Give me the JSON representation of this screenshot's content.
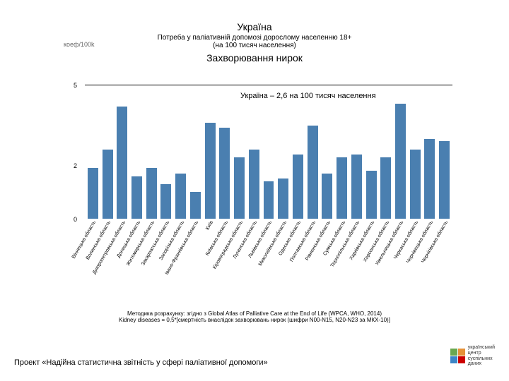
{
  "header": {
    "country": "Україна",
    "subtitle1": "Потреба у паліативній допомозі дорослому населенню 18+",
    "subtitle2": "(на 100 тисяч населення)",
    "disease": "Захворювання нирок"
  },
  "yaxis_label": "коеф/100k",
  "annotation": "Україна – 2,6 на 100 тисяч населення",
  "chart": {
    "type": "bar",
    "ylim": [
      0,
      5
    ],
    "yticks": [
      0,
      2,
      5
    ],
    "bar_color": "#4a7fb0",
    "background_color": "#ffffff",
    "categories": [
      "Вінницька область",
      "Волинська область",
      "Дніпропетровська область",
      "Донецька область",
      "Житомирська область",
      "Закарпатська область",
      "Запорізька область",
      "Івано-Франківська область",
      "Київ",
      "Київська область",
      "Кіровоградська область",
      "Луганська область",
      "Львівська область",
      "Миколаївська область",
      "Одеська область",
      "Полтавська область",
      "Рівненська область",
      "Сумська область",
      "Тернопільська область",
      "Харківська область",
      "Херсонська область",
      "Хмельницька область",
      "Черкаська область",
      "Чернівецька область",
      "Чернігівська область"
    ],
    "values": [
      1.9,
      2.6,
      4.2,
      1.6,
      1.9,
      1.3,
      1.7,
      1.0,
      3.6,
      3.4,
      2.3,
      2.6,
      1.4,
      1.5,
      2.4,
      3.5,
      1.7,
      2.3,
      2.4,
      1.8,
      2.3,
      4.3,
      2.6,
      3.0,
      2.9
    ]
  },
  "method_note1": "Методика розрахунку: згідно з Global Atlas of Palliative Care at the End of Life (WPCA, WHO, 2014)",
  "method_note2": "Kidney diseases = 0,5*[смертність внаслідок захворювань нирок (шифри N00-N15, N20-N23 за МКХ-10)]",
  "project_note": "Проект «Надійна статистична звітність у сфері паліативної допомоги»",
  "logo": {
    "colors": [
      "#6aa84f",
      "#e69138",
      "#3d85c6",
      "#cc0000"
    ],
    "text1": "український",
    "text2": "центр",
    "text3": "суспільних",
    "text4": "даних"
  }
}
